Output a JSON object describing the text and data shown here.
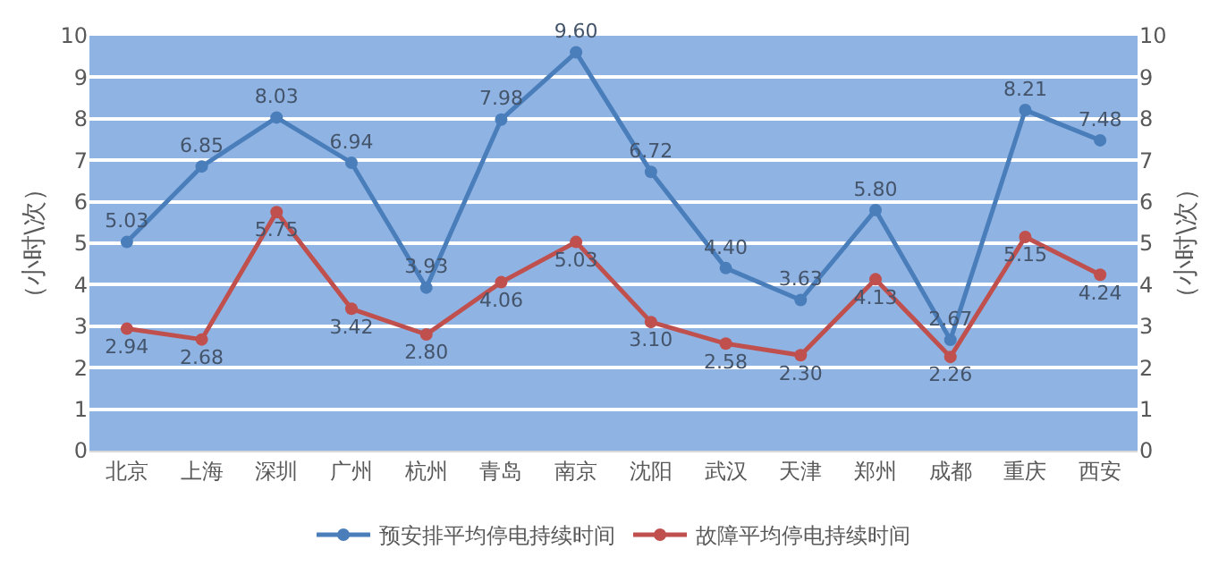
{
  "chart_data": {
    "type": "line",
    "categories": [
      "北京",
      "上海",
      "深圳",
      "广州",
      "杭州",
      "青岛",
      "南京",
      "沈阳",
      "武汉",
      "天津",
      "郑州",
      "成都",
      "重庆",
      "西安"
    ],
    "series": [
      {
        "name": "预安排平均停电持续时间",
        "color": "#4a7ebb",
        "values": [
          5.03,
          6.85,
          8.03,
          6.94,
          3.93,
          7.98,
          9.6,
          6.72,
          4.4,
          3.63,
          5.8,
          2.67,
          8.21,
          7.48
        ],
        "value_labels": [
          "5.03",
          "6.85",
          "8.03",
          "6.94",
          "3.93",
          "7.98",
          "9.60",
          "6.72",
          "4.40",
          "3.63",
          "5.80",
          "2.67",
          "8.21",
          "7.48"
        ]
      },
      {
        "name": "故障平均停电持续时间",
        "color": "#c0504d",
        "values": [
          2.94,
          2.68,
          5.75,
          3.42,
          2.8,
          4.06,
          5.03,
          3.1,
          2.58,
          2.3,
          4.13,
          2.26,
          5.15,
          4.24
        ],
        "value_labels": [
          "2.94",
          "2.68",
          "5.75",
          "3.42",
          "2.80",
          "4.06",
          "5.03",
          "3.10",
          "2.58",
          "2.30",
          "4.13",
          "2.26",
          "5.15",
          "4.24"
        ]
      }
    ],
    "ylabel": "（小时\\次）",
    "y2label": "（小时\\次）",
    "ylim": [
      0,
      10
    ],
    "yticks": [
      0,
      1,
      2,
      3,
      4,
      5,
      6,
      7,
      8,
      9,
      10
    ],
    "y2lim": [
      0,
      10
    ],
    "y2ticks": [
      0,
      1,
      2,
      3,
      4,
      5,
      6,
      7,
      8,
      9,
      10
    ],
    "grid": "y",
    "legend": "bottom",
    "marker": "circle",
    "line_style": "solid"
  }
}
